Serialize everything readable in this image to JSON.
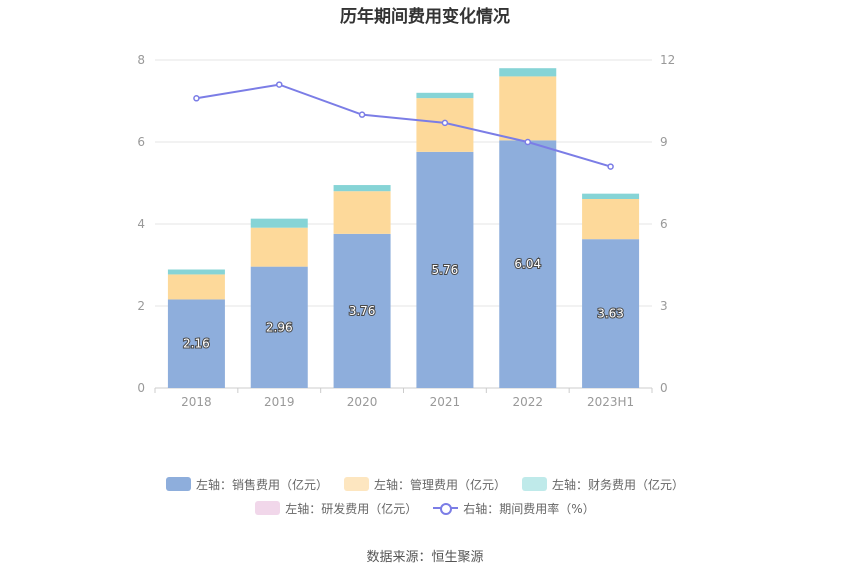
{
  "title": "历年期间费用变化情况",
  "source": "数据来源：恒生聚源",
  "chart_data": {
    "type": "bar",
    "stacked": true,
    "categories": [
      "2018",
      "2019",
      "2020",
      "2021",
      "2022",
      "2023H1"
    ],
    "series": [
      {
        "name": "左轴：销售费用（亿元）",
        "axis": "left",
        "type": "bar",
        "color": "#8eaedc",
        "values": [
          2.16,
          2.96,
          3.76,
          5.76,
          6.04,
          3.63
        ],
        "show_labels": true
      },
      {
        "name": "左轴：管理费用（亿元）",
        "axis": "left",
        "type": "bar",
        "color": "#fdd99a",
        "values": [
          0.61,
          0.95,
          1.04,
          1.31,
          1.56,
          0.98
        ]
      },
      {
        "name": "左轴：财务费用（亿元）",
        "axis": "left",
        "type": "bar",
        "color": "#86d4d6",
        "values": [
          0.12,
          0.22,
          0.15,
          0.13,
          0.2,
          0.13
        ]
      },
      {
        "name": "左轴：研发费用（亿元）",
        "axis": "left",
        "type": "bar",
        "color": "#f1d7ea",
        "values": [
          0,
          0,
          0,
          0,
          0,
          0
        ]
      },
      {
        "name": "右轴：期间费用率（%）",
        "axis": "right",
        "type": "line",
        "color": "#7b7de6",
        "values": [
          10.6,
          11.1,
          10.0,
          9.7,
          9.0,
          8.1
        ]
      }
    ],
    "y_left": {
      "min": 0,
      "max": 8,
      "ticks": [
        0,
        2,
        4,
        6,
        8
      ]
    },
    "y_right": {
      "min": 0,
      "max": 12,
      "ticks": [
        0,
        3,
        6,
        9,
        12
      ]
    },
    "grid": true,
    "legend_position": "bottom"
  }
}
